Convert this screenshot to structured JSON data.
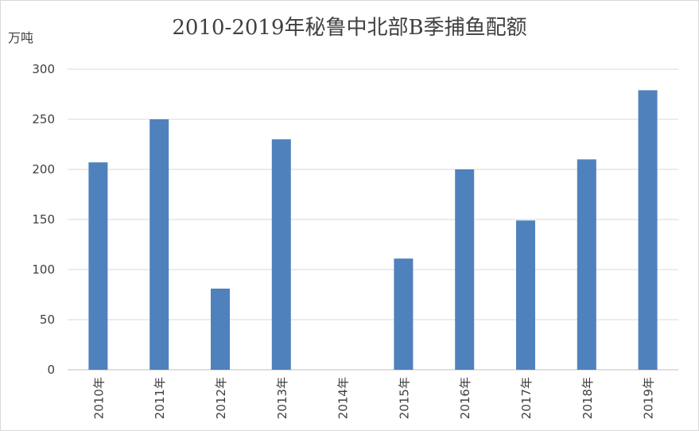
{
  "chart_data": {
    "type": "bar",
    "title": "2010-2019年秘鲁中北部B季捕鱼配额",
    "ylabel": "万吨",
    "xlabel": "",
    "categories": [
      "2010年",
      "2011年",
      "2012年",
      "2013年",
      "2014年",
      "2015年",
      "2016年",
      "2017年",
      "2018年",
      "2019年"
    ],
    "values": [
      207,
      250,
      81,
      230,
      0,
      111,
      200,
      149,
      210,
      279
    ],
    "ylim": [
      0,
      300
    ],
    "yticks": [
      0,
      50,
      100,
      150,
      200,
      250,
      300
    ],
    "grid": true,
    "legend": "none",
    "bar_color": "#4f81bd",
    "grid_color": "#d9d9d9"
  }
}
